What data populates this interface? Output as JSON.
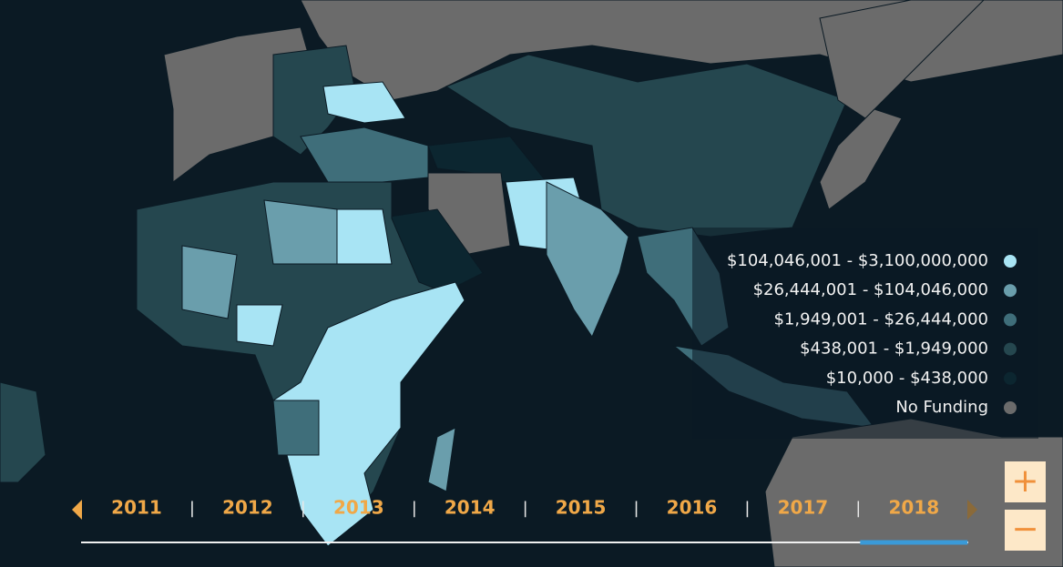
{
  "legend": [
    {
      "label": "$104,046,001 - $3,100,000,000",
      "color": "#a8e4f4"
    },
    {
      "label": "$26,444,001 - $104,046,000",
      "color": "#6a9eac"
    },
    {
      "label": "$1,949,001 - $26,444,000",
      "color": "#3f6e7a"
    },
    {
      "label": "$438,001 - $1,949,000",
      "color": "#25474f"
    },
    {
      "label": "$10,000 - $438,000",
      "color": "#0c2630"
    },
    {
      "label": "No Funding",
      "color": "#6b6b6b"
    }
  ],
  "timeline": {
    "years": [
      "2011",
      "2012",
      "2013",
      "2014",
      "2015",
      "2016",
      "2017",
      "2018"
    ],
    "separator": "|",
    "selected": "2018"
  },
  "zoom": {
    "in": "+",
    "out": "−"
  }
}
